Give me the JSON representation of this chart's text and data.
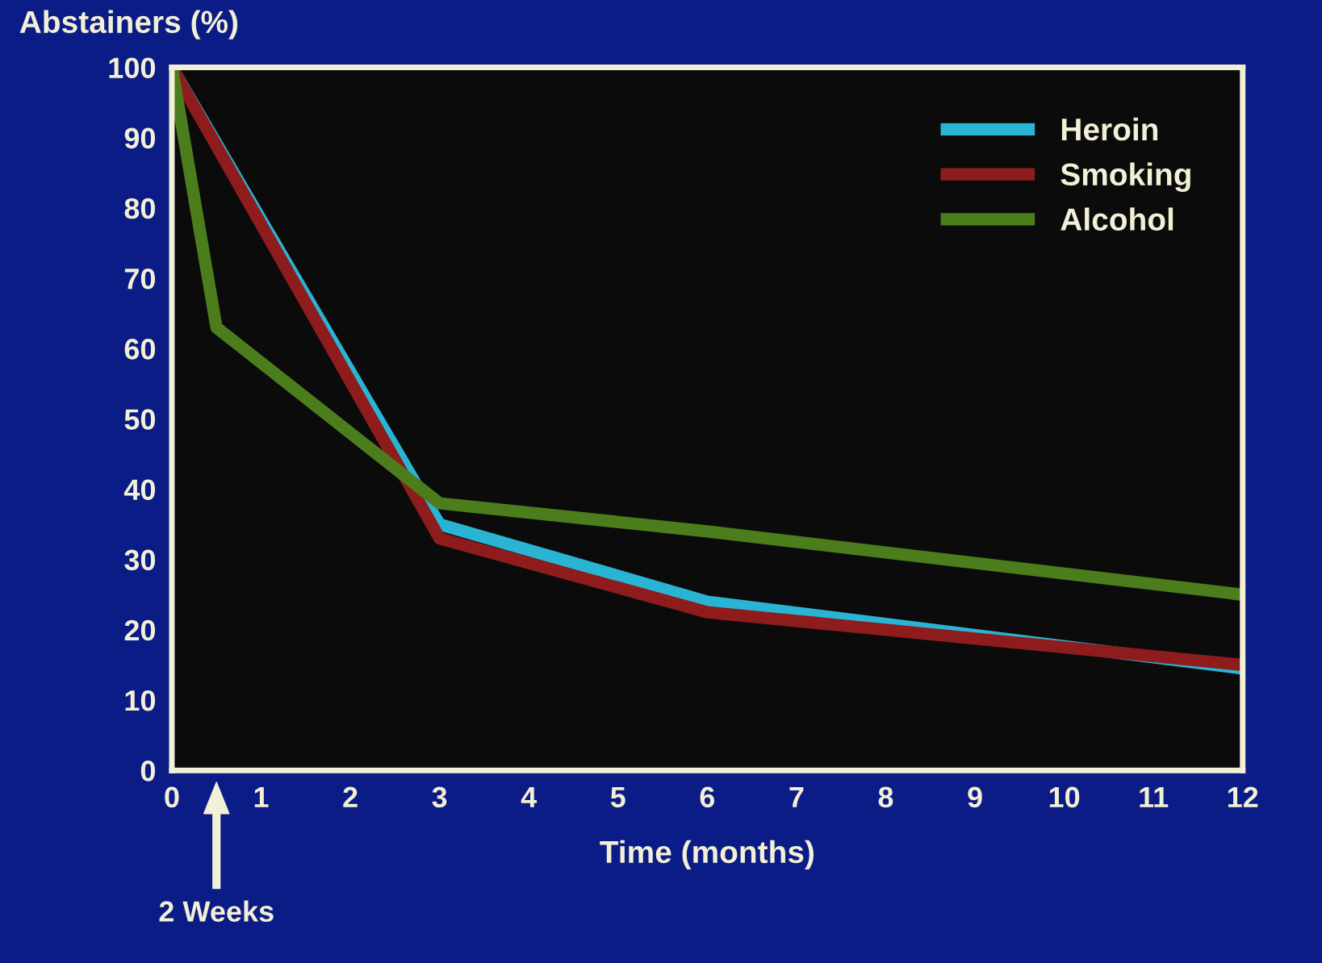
{
  "chart_data": {
    "type": "line",
    "xlabel": "Time (months)",
    "ylabel": "Abstainers (%)",
    "xlim": [
      0,
      12
    ],
    "ylim": [
      0,
      100
    ],
    "xticks": [
      0,
      1,
      2,
      3,
      4,
      5,
      6,
      7,
      8,
      9,
      10,
      11,
      12
    ],
    "yticks": [
      0,
      10,
      20,
      30,
      40,
      50,
      60,
      70,
      80,
      90,
      100
    ],
    "grid": false,
    "legend": "top right",
    "marker": "none",
    "line_style": "solid",
    "series": [
      {
        "name": "Heroin",
        "color": "#2ab4d4",
        "x": [
          0,
          3,
          6,
          12
        ],
        "values": [
          100,
          35,
          24,
          14.5
        ]
      },
      {
        "name": "Smoking",
        "color": "#8e1c1c",
        "x": [
          0,
          3,
          6,
          12
        ],
        "values": [
          100,
          33,
          22.5,
          15
        ]
      },
      {
        "name": "Alcohol",
        "color": "#4b7d1c",
        "x": [
          0,
          0.5,
          3,
          6,
          12
        ],
        "values": [
          100,
          63,
          38,
          34,
          25
        ]
      }
    ],
    "annotations": [
      "2 Weeks"
    ]
  }
}
